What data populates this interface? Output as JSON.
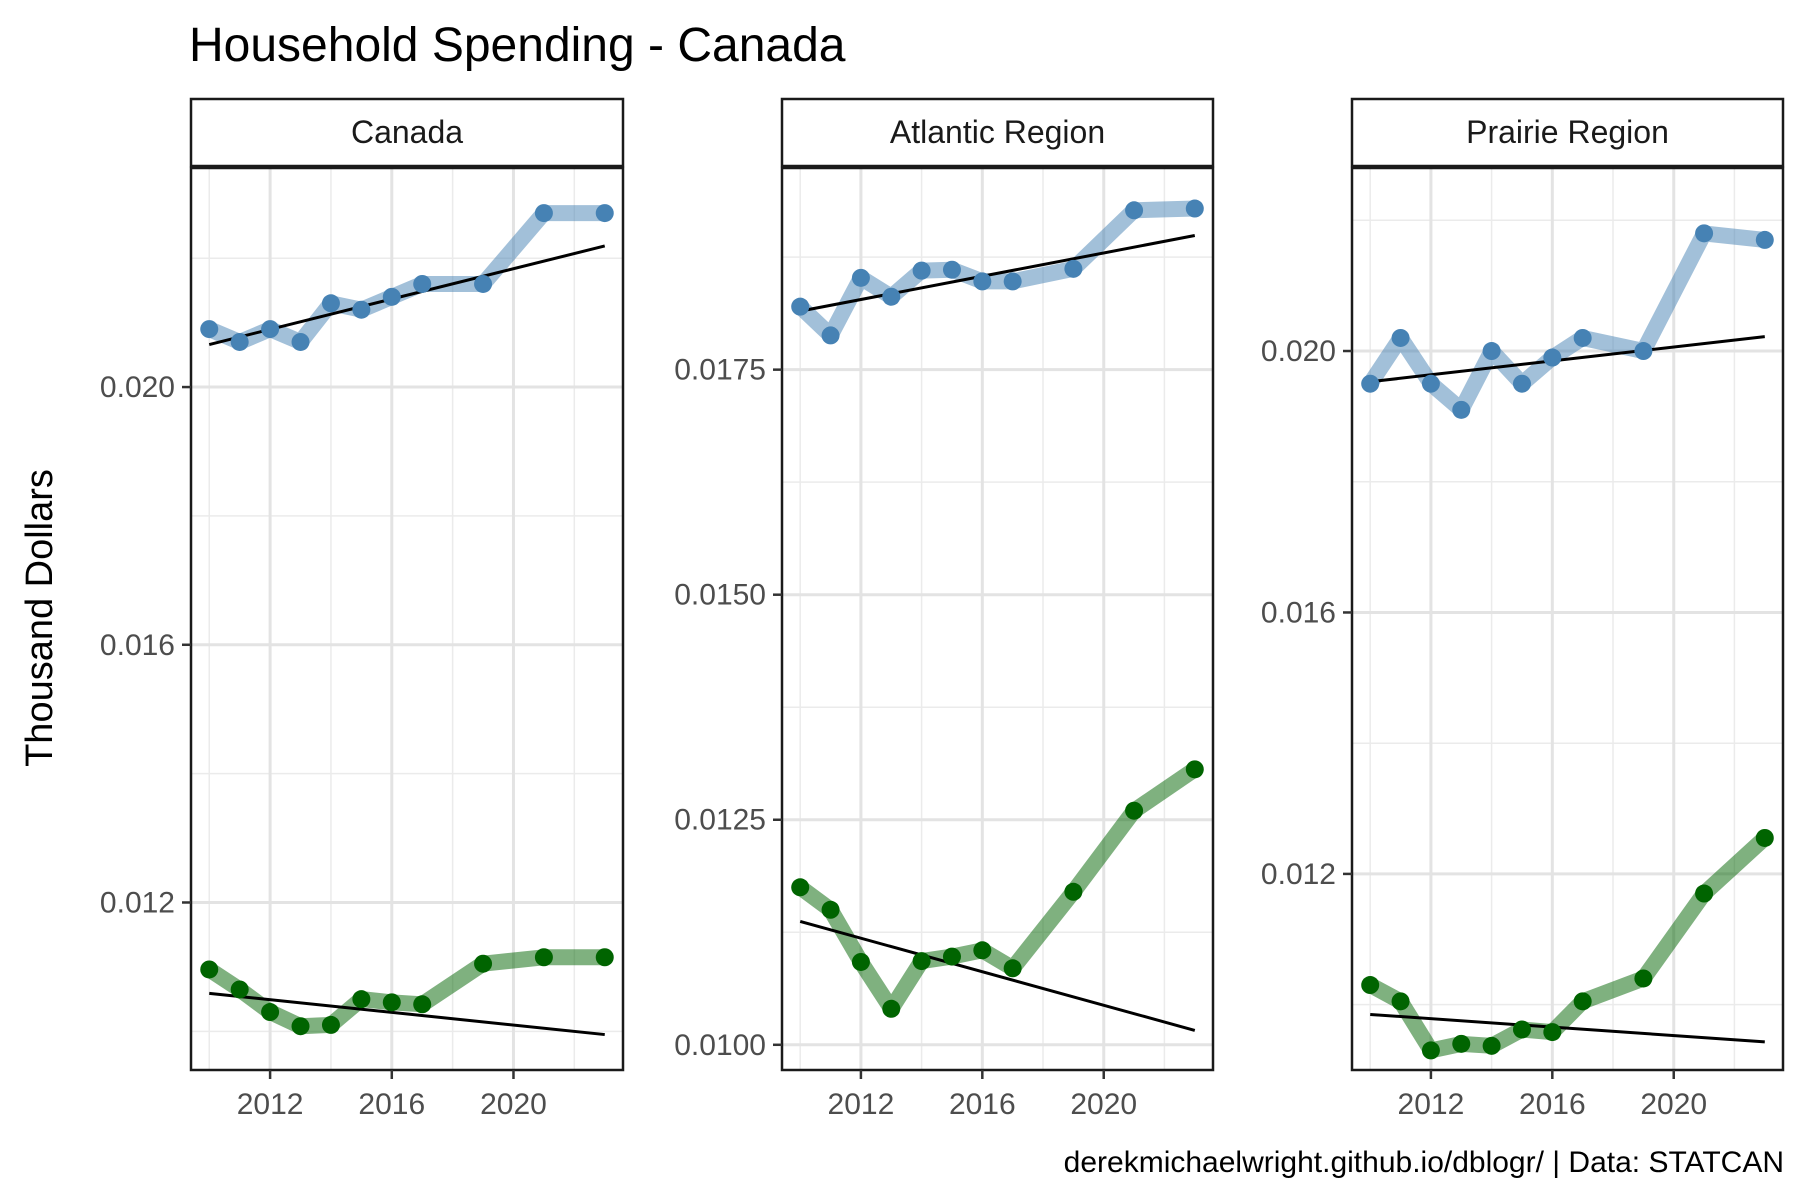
{
  "chart_data": {
    "type": "line",
    "title": "Household Spending - Canada",
    "ylabel": "Thousand Dollars",
    "xlabel": "",
    "caption": "derekmichaelwright.github.io/dblogr/ | Data: STATCAN",
    "x_ticks": [
      2012,
      2016,
      2020
    ],
    "xlim": [
      2009.4,
      2023.6
    ],
    "series_colors": [
      "#4682b4",
      "#006400"
    ],
    "trend_color": "#000000",
    "grid": true,
    "legend": "none",
    "facets": [
      {
        "name": "Canada",
        "ylim": [
          0.0094,
          0.0234
        ],
        "y_ticks": [
          "0.012",
          "0.016",
          "0.020"
        ],
        "y_tick_values": [
          0.012,
          0.016,
          0.02
        ],
        "y_minor": [
          0.01,
          0.014,
          0.018,
          0.022
        ],
        "series": [
          {
            "x": [
              2010,
              2011,
              2012,
              2013,
              2014,
              2015,
              2016,
              2017,
              2019,
              2021,
              2023
            ],
            "values": [
              0.0209,
              0.0207,
              0.0209,
              0.0207,
              0.0213,
              0.0212,
              0.0214,
              0.0216,
              0.0216,
              0.0227,
              0.0227
            ]
          },
          {
            "x": [
              2010,
              2011,
              2012,
              2013,
              2014,
              2015,
              2016,
              2017,
              2019,
              2021,
              2023
            ],
            "values": [
              0.01096,
              0.01065,
              0.0103,
              0.01008,
              0.0101,
              0.0105,
              0.01045,
              0.01042,
              0.01105,
              0.01115,
              0.01115
            ]
          }
        ],
        "trends": [
          {
            "x": [
              2010,
              2023
            ],
            "values": [
              0.02066,
              0.02219
            ]
          },
          {
            "x": [
              2010,
              2023
            ],
            "values": [
              0.01059,
              0.00995
            ]
          }
        ]
      },
      {
        "name": "Atlantic Region",
        "ylim": [
          0.00972,
          0.01974
        ],
        "y_ticks": [
          "0.0100",
          "0.0125",
          "0.0150",
          "0.0175"
        ],
        "y_tick_values": [
          0.01,
          0.0125,
          0.015,
          0.0175
        ],
        "y_minor": [
          0.01125,
          0.01375,
          0.01625,
          0.01875
        ],
        "series": [
          {
            "x": [
              2010,
              2011,
              2012,
              2013,
              2014,
              2015,
              2016,
              2017,
              2019,
              2021,
              2023
            ],
            "values": [
              0.0182,
              0.01788,
              0.01852,
              0.01831,
              0.0186,
              0.01861,
              0.01848,
              0.01848,
              0.01862,
              0.01927,
              0.01929
            ]
          },
          {
            "x": [
              2010,
              2011,
              2012,
              2013,
              2014,
              2015,
              2016,
              2017,
              2019,
              2021,
              2023
            ],
            "values": [
              0.01175,
              0.0115,
              0.01092,
              0.0104,
              0.01093,
              0.01098,
              0.01105,
              0.01085,
              0.0117,
              0.0126,
              0.01306
            ]
          }
        ],
        "trends": [
          {
            "x": [
              2010,
              2023
            ],
            "values": [
              0.01815,
              0.01899
            ]
          },
          {
            "x": [
              2010,
              2023
            ],
            "values": [
              0.01137,
              0.01016
            ]
          }
        ]
      },
      {
        "name": "Prairie Region",
        "ylim": [
          0.009,
          0.0228
        ],
        "y_ticks": [
          "0.012",
          "0.016",
          "0.020"
        ],
        "y_tick_values": [
          0.012,
          0.016,
          0.02
        ],
        "y_minor": [
          0.01,
          0.014,
          0.018,
          0.022
        ],
        "series": [
          {
            "x": [
              2010,
              2011,
              2012,
              2013,
              2014,
              2015,
              2016,
              2017,
              2019,
              2021,
              2023
            ],
            "values": [
              0.0195,
              0.0202,
              0.0195,
              0.0191,
              0.02,
              0.0195,
              0.0199,
              0.0202,
              0.02,
              0.0218,
              0.0217
            ]
          },
          {
            "x": [
              2010,
              2011,
              2012,
              2013,
              2014,
              2015,
              2016,
              2017,
              2019,
              2021,
              2023
            ],
            "values": [
              0.0103,
              0.01005,
              0.0093,
              0.0094,
              0.00937,
              0.00962,
              0.00958,
              0.01005,
              0.0104,
              0.0117,
              0.01255
            ]
          }
        ],
        "trends": [
          {
            "x": [
              2010,
              2023
            ],
            "values": [
              0.01953,
              0.02022
            ]
          },
          {
            "x": [
              2010,
              2023
            ],
            "values": [
              0.00985,
              0.00943
            ]
          }
        ]
      }
    ]
  }
}
